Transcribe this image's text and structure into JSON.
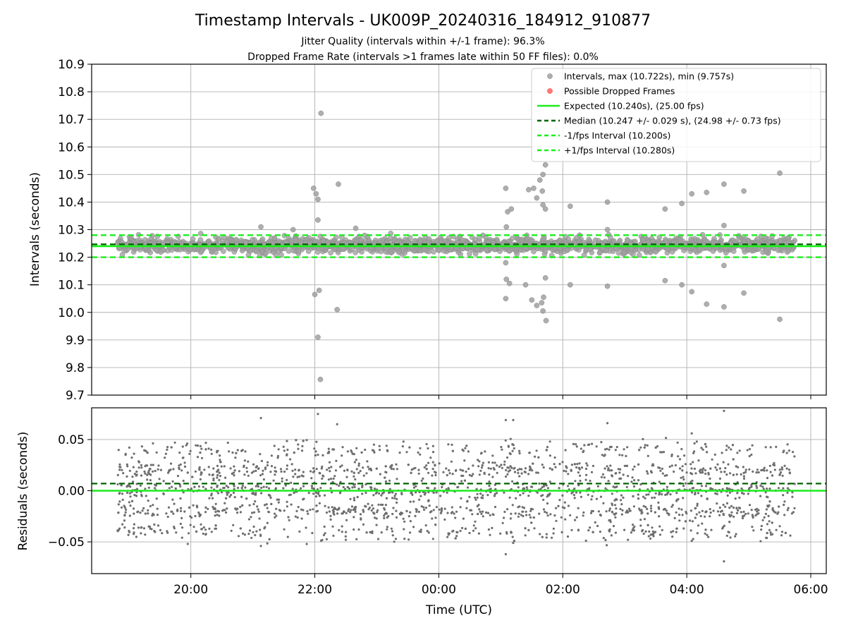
{
  "chart_data": [
    {
      "panel": "intervals",
      "type": "scatter",
      "title": "Timestamp Intervals - UK009P_20240316_184912_910877",
      "subtitle_lines": [
        "Jitter Quality (intervals within +/-1 frame): 96.3%",
        "Dropped Frame Rate (intervals >1 frames late within 50 FF files): 0.0%"
      ],
      "ylabel": "Intervals (seconds)",
      "ylim": [
        9.7,
        10.9
      ],
      "yticks": [
        "10.9",
        "10.8",
        "10.7",
        "10.6",
        "10.5",
        "10.4",
        "10.3",
        "10.2",
        "10.1",
        "10.0",
        "9.9",
        "9.8",
        "9.7"
      ],
      "xlim_hours_utc": [
        18.4,
        30.25
      ],
      "data_range_hours_utc": [
        18.82,
        29.75
      ],
      "grid": true,
      "legend_placement": "top-right",
      "legend": [
        {
          "label": "Intervals, max (10.722s), min (9.757s)",
          "kind": "marker",
          "color": "#a0a0a0"
        },
        {
          "label": "Possible Dropped Frames",
          "kind": "marker",
          "color": "#ff6060"
        },
        {
          "label": "Expected (10.240s), (25.00 fps)",
          "kind": "solid",
          "color": "#1aee1a"
        },
        {
          "label": "Median (10.247 +/- 0.029 s), (24.98 +/- 0.73 fps)",
          "kind": "dashed",
          "color": "#006400"
        },
        {
          "label": "-1/fps Interval (10.200s)",
          "kind": "dashed",
          "color": "#1aee1a"
        },
        {
          "label": "+1/fps Interval (10.280s)",
          "kind": "dashed",
          "color": "#1aee1a"
        }
      ],
      "lines": {
        "expected": 10.24,
        "median": 10.247,
        "minus_one_fps": 10.2,
        "plus_one_fps": 10.28
      },
      "band": {
        "center": 10.243,
        "spread": 0.025,
        "sample_count": 1800
      },
      "outliers": [
        {
          "t": 21.98,
          "y": 10.45
        },
        {
          "t": 22.02,
          "y": 10.43
        },
        {
          "t": 22.05,
          "y": 10.41
        },
        {
          "t": 22.05,
          "y": 10.335
        },
        {
          "t": 22.1,
          "y": 10.722
        },
        {
          "t": 22.0,
          "y": 10.065
        },
        {
          "t": 22.07,
          "y": 10.08
        },
        {
          "t": 22.05,
          "y": 9.91
        },
        {
          "t": 22.09,
          "y": 9.757
        },
        {
          "t": 22.38,
          "y": 10.465
        },
        {
          "t": 22.36,
          "y": 10.01
        },
        {
          "t": 21.13,
          "y": 10.31
        },
        {
          "t": 21.65,
          "y": 10.3
        },
        {
          "t": 22.66,
          "y": 10.305
        },
        {
          "t": 25.08,
          "y": 10.45
        },
        {
          "t": 25.11,
          "y": 10.365
        },
        {
          "t": 25.17,
          "y": 10.375
        },
        {
          "t": 25.09,
          "y": 10.31
        },
        {
          "t": 25.08,
          "y": 10.18
        },
        {
          "t": 25.09,
          "y": 10.12
        },
        {
          "t": 25.14,
          "y": 10.105
        },
        {
          "t": 25.08,
          "y": 10.05
        },
        {
          "t": 25.45,
          "y": 10.445
        },
        {
          "t": 25.53,
          "y": 10.45
        },
        {
          "t": 25.58,
          "y": 10.415
        },
        {
          "t": 25.63,
          "y": 10.48
        },
        {
          "t": 25.68,
          "y": 10.5
        },
        {
          "t": 25.72,
          "y": 10.535
        },
        {
          "t": 25.67,
          "y": 10.44
        },
        {
          "t": 25.68,
          "y": 10.39
        },
        {
          "t": 25.72,
          "y": 10.375
        },
        {
          "t": 25.5,
          "y": 10.045
        },
        {
          "t": 25.58,
          "y": 10.025
        },
        {
          "t": 25.66,
          "y": 10.035
        },
        {
          "t": 25.69,
          "y": 10.055
        },
        {
          "t": 25.68,
          "y": 10.005
        },
        {
          "t": 25.72,
          "y": 10.125
        },
        {
          "t": 25.73,
          "y": 9.97
        },
        {
          "t": 25.4,
          "y": 10.1
        },
        {
          "t": 26.12,
          "y": 10.385
        },
        {
          "t": 26.12,
          "y": 10.1
        },
        {
          "t": 26.72,
          "y": 10.4
        },
        {
          "t": 26.72,
          "y": 10.3
        },
        {
          "t": 26.72,
          "y": 10.095
        },
        {
          "t": 27.65,
          "y": 10.375
        },
        {
          "t": 27.65,
          "y": 10.115
        },
        {
          "t": 27.92,
          "y": 10.395
        },
        {
          "t": 27.92,
          "y": 10.1
        },
        {
          "t": 28.08,
          "y": 10.43
        },
        {
          "t": 28.08,
          "y": 10.075
        },
        {
          "t": 28.32,
          "y": 10.435
        },
        {
          "t": 28.32,
          "y": 10.03
        },
        {
          "t": 28.6,
          "y": 10.465
        },
        {
          "t": 28.6,
          "y": 10.315
        },
        {
          "t": 28.6,
          "y": 10.17
        },
        {
          "t": 28.6,
          "y": 10.02
        },
        {
          "t": 28.92,
          "y": 10.44
        },
        {
          "t": 28.92,
          "y": 10.07
        },
        {
          "t": 29.5,
          "y": 10.505
        },
        {
          "t": 29.5,
          "y": 9.975
        },
        {
          "t": 26.27,
          "y": 10.28
        }
      ]
    },
    {
      "panel": "residuals",
      "type": "scatter",
      "ylabel": "Residuals (seconds)",
      "xlabel": "Time (UTC)",
      "ylim": [
        -0.081,
        0.081
      ],
      "yticks": [
        {
          "v": 0.05,
          "label": "0.05"
        },
        {
          "v": 0.0,
          "label": "0.00"
        },
        {
          "v": -0.05,
          "label": "−0.05"
        }
      ],
      "xticks": [
        {
          "v": 20,
          "label": "20:00"
        },
        {
          "v": 22,
          "label": "22:00"
        },
        {
          "v": 24,
          "label": "00:00"
        },
        {
          "v": 26,
          "label": "02:00"
        },
        {
          "v": 28,
          "label": "04:00"
        },
        {
          "v": 30,
          "label": "06:00"
        }
      ],
      "grid": true,
      "lines": {
        "expected": 0.0,
        "median": 0.007
      },
      "sample_count": 2200,
      "residual_levels": [
        -0.04,
        -0.02,
        0.0,
        0.02,
        0.04
      ],
      "outliers": [
        {
          "t": 21.13,
          "y": 0.071
        },
        {
          "t": 22.05,
          "y": 0.075
        },
        {
          "t": 22.36,
          "y": 0.065
        },
        {
          "t": 25.08,
          "y": 0.069
        },
        {
          "t": 25.2,
          "y": 0.069
        },
        {
          "t": 26.72,
          "y": 0.066
        },
        {
          "t": 28.08,
          "y": 0.056
        },
        {
          "t": 28.6,
          "y": 0.078
        },
        {
          "t": 19.95,
          "y": -0.052
        },
        {
          "t": 21.13,
          "y": -0.054
        },
        {
          "t": 22.5,
          "y": -0.048
        },
        {
          "t": 25.08,
          "y": -0.062
        },
        {
          "t": 25.2,
          "y": -0.051
        },
        {
          "t": 28.08,
          "y": -0.049
        },
        {
          "t": 28.65,
          "y": -0.044
        },
        {
          "t": 28.6,
          "y": -0.069
        },
        {
          "t": 20.2,
          "y": -0.042
        },
        {
          "t": 22.3,
          "y": -0.044
        },
        {
          "t": 18.85,
          "y": -0.037
        },
        {
          "t": 29.2,
          "y": -0.038
        }
      ]
    }
  ]
}
